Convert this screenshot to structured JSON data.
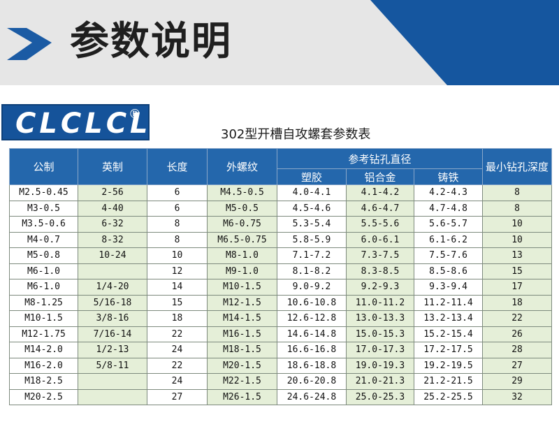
{
  "header": {
    "title": "参数说明"
  },
  "logo": {
    "text": "CLCLCL",
    "reg": "®"
  },
  "table_title": "302型开槽自攻螺套参数表",
  "columns": {
    "metric": "公制",
    "imperial": "英制",
    "length": "长度",
    "outer_thread": "外螺纹",
    "drill_group": "参考钻孔直径",
    "plastic": "塑胶",
    "aluminum": "铝合金",
    "cast_iron": "铸铁",
    "min_depth": "最小钻孔深度"
  },
  "rows": [
    [
      "M2.5-0.45",
      "2-56",
      "6",
      "M4.5-0.5",
      "4.0-4.1",
      "4.1-4.2",
      "4.2-4.3",
      "8"
    ],
    [
      "M3-0.5",
      "4-40",
      "6",
      "M5-0.5",
      "4.5-4.6",
      "4.6-4.7",
      "4.7-4.8",
      "8"
    ],
    [
      "M3.5-0.6",
      "6-32",
      "8",
      "M6-0.75",
      "5.3-5.4",
      "5.5-5.6",
      "5.6-5.7",
      "10"
    ],
    [
      "M4-0.7",
      "8-32",
      "8",
      "M6.5-0.75",
      "5.8-5.9",
      "6.0-6.1",
      "6.1-6.2",
      "10"
    ],
    [
      "M5-0.8",
      "10-24",
      "10",
      "M8-1.0",
      "7.1-7.2",
      "7.3-7.5",
      "7.5-7.6",
      "13"
    ],
    [
      "M6-1.0",
      "",
      "12",
      "M9-1.0",
      "8.1-8.2",
      "8.3-8.5",
      "8.5-8.6",
      "15"
    ],
    [
      "M6-1.0",
      "1/4-20",
      "14",
      "M10-1.5",
      "9.0-9.2",
      "9.2-9.3",
      "9.3-9.4",
      "17"
    ],
    [
      "M8-1.25",
      "5/16-18",
      "15",
      "M12-1.5",
      "10.6-10.8",
      "11.0-11.2",
      "11.2-11.4",
      "18"
    ],
    [
      "M10-1.5",
      "3/8-16",
      "18",
      "M14-1.5",
      "12.6-12.8",
      "13.0-13.3",
      "13.2-13.4",
      "22"
    ],
    [
      "M12-1.75",
      "7/16-14",
      "22",
      "M16-1.5",
      "14.6-14.8",
      "15.0-15.3",
      "15.2-15.4",
      "26"
    ],
    [
      "M14-2.0",
      "1/2-13",
      "24",
      "M18-1.5",
      "16.6-16.8",
      "17.0-17.3",
      "17.2-17.5",
      "28"
    ],
    [
      "M16-2.0",
      "5/8-11",
      "22",
      "M20-1.5",
      "18.6-18.8",
      "19.0-19.3",
      "19.2-19.5",
      "27"
    ],
    [
      "M18-2.5",
      "",
      "24",
      "M22-1.5",
      "20.6-20.8",
      "21.0-21.3",
      "21.2-21.5",
      "29"
    ],
    [
      "M20-2.5",
      "",
      "27",
      "M26-1.5",
      "24.6-24.8",
      "25.0-25.3",
      "25.2-25.5",
      "32"
    ]
  ],
  "colors": {
    "header_blue": "#2467ac",
    "cell_green": "#e5efd8",
    "banner_gray": "#e6e6e6"
  }
}
